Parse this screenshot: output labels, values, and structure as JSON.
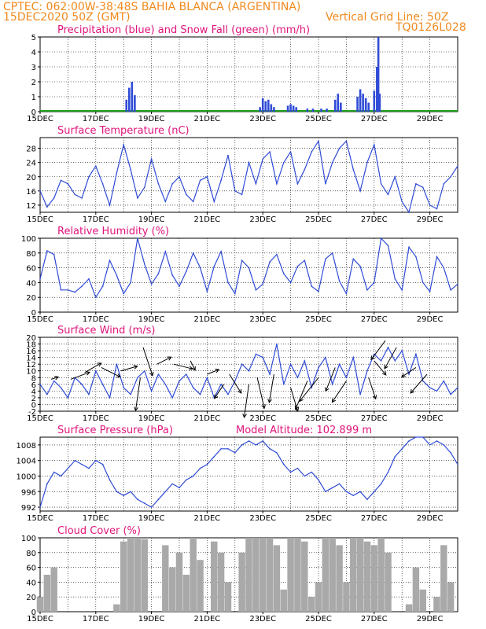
{
  "header": {
    "line1": "CPTEC:   062:00W-38:48S   BAHIA BLANCA (ARGENTINA)",
    "line2": "15DEC2020 50Z (GMT)",
    "grid_note": "Vertical Grid Line: 50Z",
    "code": "TQ0126L028"
  },
  "colors": {
    "line": "#2f4bd6",
    "bar": "#2f4bd6",
    "snow": "#21a321",
    "cloud": "#a9a9a9",
    "title": "#e0147c",
    "header": "#f08a1d"
  },
  "x_labels": [
    "15DEC",
    "17DEC",
    "19DEC",
    "21DEC",
    "23DEC",
    "25DEC",
    "27DEC",
    "29DEC"
  ],
  "chart_data": [
    {
      "type": "bar",
      "title": "Precipitation (blue) and Snow Fall (green) (mm/h)",
      "ylim": [
        0,
        5
      ],
      "yticks": [
        0,
        1,
        2,
        3,
        4,
        5
      ],
      "x_start_day": 15,
      "series": [
        {
          "name": "Precipitation",
          "points": [
            [
              18.1,
              0.8
            ],
            [
              18.2,
              1.6
            ],
            [
              18.3,
              2.0
            ],
            [
              18.4,
              1.1
            ],
            [
              22.9,
              0.3
            ],
            [
              23.0,
              0.9
            ],
            [
              23.1,
              0.7
            ],
            [
              23.2,
              0.8
            ],
            [
              23.3,
              0.5
            ],
            [
              23.4,
              0.3
            ],
            [
              23.9,
              0.4
            ],
            [
              24.0,
              0.5
            ],
            [
              24.1,
              0.4
            ],
            [
              24.2,
              0.3
            ],
            [
              24.6,
              0.2
            ],
            [
              24.8,
              0.2
            ],
            [
              25.1,
              0.2
            ],
            [
              25.3,
              0.2
            ],
            [
              25.6,
              0.8
            ],
            [
              25.7,
              1.2
            ],
            [
              25.8,
              0.6
            ],
            [
              26.4,
              1.0
            ],
            [
              26.5,
              1.5
            ],
            [
              26.6,
              1.2
            ],
            [
              26.7,
              0.9
            ],
            [
              26.8,
              0.6
            ],
            [
              27.0,
              1.4
            ],
            [
              27.1,
              3.0
            ],
            [
              27.15,
              5.0
            ],
            [
              27.2,
              1.2
            ]
          ]
        },
        {
          "name": "Snow Fall",
          "points": []
        }
      ]
    },
    {
      "type": "line",
      "title": "Surface Temperature (nC)",
      "ylim": [
        10,
        31
      ],
      "yticks": [
        12,
        16,
        20,
        24,
        28
      ],
      "x": [
        15.0,
        15.25,
        15.5,
        15.75,
        16.0,
        16.25,
        16.5,
        16.75,
        17.0,
        17.25,
        17.5,
        17.75,
        18.0,
        18.25,
        18.5,
        18.75,
        19.0,
        19.25,
        19.5,
        19.75,
        20.0,
        20.25,
        20.5,
        20.75,
        21.0,
        21.25,
        21.5,
        21.75,
        22.0,
        22.25,
        22.5,
        22.75,
        23.0,
        23.25,
        23.5,
        23.75,
        24.0,
        24.25,
        24.5,
        24.75,
        25.0,
        25.25,
        25.5,
        25.75,
        26.0,
        26.25,
        26.5,
        26.75,
        27.0,
        27.25,
        27.5,
        27.75,
        28.0,
        28.25,
        28.5,
        28.75,
        29.0,
        29.25,
        29.5,
        29.75,
        30.0
      ],
      "y": [
        16,
        11.5,
        14,
        19,
        18,
        15,
        14,
        20,
        23,
        18,
        12,
        21,
        29,
        22,
        14,
        17,
        25,
        18,
        13,
        18,
        20,
        15,
        13,
        19,
        20,
        13,
        19,
        26,
        16,
        15,
        24,
        18,
        25,
        27,
        18,
        24,
        27,
        18,
        22,
        27,
        30,
        18,
        24,
        28,
        30,
        22,
        16,
        24,
        29,
        18,
        15,
        20,
        13,
        10,
        18,
        17,
        12,
        11,
        18,
        20,
        23
      ]
    },
    {
      "type": "line",
      "title": "Relative Humidity (%)",
      "ylim": [
        0,
        100
      ],
      "yticks": [
        0,
        20,
        40,
        60,
        80,
        100
      ],
      "x": [
        15.0,
        15.25,
        15.5,
        15.75,
        16.0,
        16.25,
        16.5,
        16.75,
        17.0,
        17.25,
        17.5,
        17.75,
        18.0,
        18.25,
        18.5,
        18.75,
        19.0,
        19.25,
        19.5,
        19.75,
        20.0,
        20.25,
        20.5,
        20.75,
        21.0,
        21.25,
        21.5,
        21.75,
        22.0,
        22.25,
        22.5,
        22.75,
        23.0,
        23.25,
        23.5,
        23.75,
        24.0,
        24.25,
        24.5,
        24.75,
        25.0,
        25.25,
        25.5,
        25.75,
        26.0,
        26.25,
        26.5,
        26.75,
        27.0,
        27.25,
        27.5,
        27.75,
        28.0,
        28.25,
        28.5,
        28.75,
        29.0,
        29.25,
        29.5,
        29.75,
        30.0
      ],
      "y": [
        45,
        83,
        78,
        30,
        30,
        27,
        35,
        45,
        20,
        35,
        70,
        50,
        25,
        40,
        100,
        65,
        38,
        52,
        82,
        50,
        35,
        55,
        80,
        60,
        28,
        62,
        82,
        40,
        25,
        70,
        60,
        30,
        38,
        68,
        78,
        52,
        40,
        62,
        70,
        35,
        28,
        72,
        80,
        42,
        25,
        72,
        62,
        30,
        40,
        100,
        90,
        45,
        30,
        88,
        75,
        40,
        28,
        75,
        60,
        30,
        38
      ]
    },
    {
      "type": "line",
      "title": "Surface Wind (m/s)",
      "ylim": [
        -2,
        20
      ],
      "yticks": [
        -2,
        0,
        2,
        4,
        6,
        8,
        10,
        12,
        14,
        16,
        18,
        20
      ],
      "x": [
        15.0,
        15.25,
        15.5,
        15.75,
        16.0,
        16.25,
        16.5,
        16.75,
        17.0,
        17.25,
        17.5,
        17.75,
        18.0,
        18.25,
        18.5,
        18.75,
        19.0,
        19.25,
        19.5,
        19.75,
        20.0,
        20.25,
        20.5,
        20.75,
        21.0,
        21.25,
        21.5,
        21.75,
        22.0,
        22.25,
        22.5,
        22.75,
        23.0,
        23.25,
        23.5,
        23.75,
        24.0,
        24.25,
        24.5,
        24.75,
        25.0,
        25.25,
        25.5,
        25.75,
        26.0,
        26.25,
        26.5,
        26.75,
        27.0,
        27.25,
        27.5,
        27.75,
        28.0,
        28.25,
        28.5,
        28.75,
        29.0,
        29.25,
        29.5,
        29.75,
        30.0
      ],
      "y": [
        6,
        3,
        7,
        5,
        2,
        8,
        6,
        3,
        10,
        6,
        2,
        12,
        5,
        3,
        8,
        10,
        4,
        9,
        6,
        2,
        7,
        9,
        5,
        3,
        8,
        2,
        6,
        3,
        7,
        12,
        10,
        15,
        14,
        9,
        18,
        6,
        12,
        8,
        13,
        5,
        11,
        14,
        6,
        12,
        8,
        14,
        3,
        10,
        15,
        13,
        17,
        13,
        16,
        9,
        15,
        7,
        5,
        4,
        7,
        3,
        5
      ],
      "arrows": [
        [
          15.4,
          7.5,
          3,
          1
        ],
        [
          16.1,
          7.5,
          8,
          3
        ],
        [
          16.6,
          9.5,
          7,
          4
        ],
        [
          17.2,
          11,
          8,
          -4
        ],
        [
          17.9,
          10,
          7,
          2
        ],
        [
          18.6,
          8,
          -2,
          -14
        ],
        [
          18.7,
          17,
          4,
          -12
        ],
        [
          19.2,
          12,
          6,
          3
        ],
        [
          19.8,
          12,
          8,
          -2
        ],
        [
          20.4,
          13,
          2,
          -4
        ],
        [
          21.0,
          9,
          5,
          2
        ],
        [
          21.6,
          6,
          -4,
          -6
        ],
        [
          21.8,
          9,
          5,
          -8
        ],
        [
          22.5,
          6,
          -2,
          -14
        ],
        [
          22.8,
          8,
          3,
          -13
        ],
        [
          23.4,
          9,
          -2,
          -12
        ],
        [
          24.0,
          5,
          3,
          -10
        ],
        [
          24.6,
          7,
          -5,
          -12
        ],
        [
          25.0,
          8,
          -8,
          -10
        ],
        [
          25.6,
          11,
          -4,
          -10
        ],
        [
          26.0,
          7,
          -6,
          -9
        ],
        [
          26.8,
          8,
          3,
          -9
        ],
        [
          27.0,
          13,
          5,
          -6
        ],
        [
          27.4,
          19,
          -6,
          -8
        ],
        [
          27.8,
          17,
          -5,
          -9
        ],
        [
          28.5,
          11,
          -6,
          -4
        ],
        [
          28.9,
          9,
          -7,
          -8
        ]
      ]
    },
    {
      "type": "line",
      "title": "Surface Pressure (hPa)",
      "annotation": "Model Altitude: 102.899  m",
      "ylim": [
        991,
        1010
      ],
      "yticks": [
        992,
        996,
        1000,
        1004,
        1008
      ],
      "x": [
        15.0,
        15.25,
        15.5,
        15.75,
        16.0,
        16.25,
        16.5,
        16.75,
        17.0,
        17.25,
        17.5,
        17.75,
        18.0,
        18.25,
        18.5,
        18.75,
        19.0,
        19.25,
        19.5,
        19.75,
        20.0,
        20.25,
        20.5,
        20.75,
        21.0,
        21.25,
        21.5,
        21.75,
        22.0,
        22.25,
        22.5,
        22.75,
        23.0,
        23.25,
        23.5,
        23.75,
        24.0,
        24.25,
        24.5,
        24.75,
        25.0,
        25.25,
        25.5,
        25.75,
        26.0,
        26.25,
        26.5,
        26.75,
        27.0,
        27.25,
        27.5,
        27.75,
        28.0,
        28.25,
        28.5,
        28.75,
        29.0,
        29.25,
        29.5,
        29.75,
        30.0
      ],
      "y": [
        992,
        998,
        1001,
        1000,
        1002,
        1004,
        1003,
        1002,
        1004,
        1003,
        999,
        996,
        995,
        996,
        994,
        993,
        992,
        994,
        996,
        998,
        997,
        999,
        1000,
        1002,
        1003,
        1005,
        1007,
        1007,
        1006,
        1008,
        1009,
        1008,
        1009,
        1007,
        1006,
        1003,
        1001,
        1002,
        1000,
        1001,
        999,
        996,
        997,
        998,
        996,
        995,
        996,
        994,
        996,
        998,
        1001,
        1005,
        1007,
        1009,
        1011,
        1010,
        1008,
        1009,
        1008,
        1006,
        1003
      ]
    },
    {
      "type": "area",
      "title": "Cloud Cover (%)",
      "ylim": [
        0,
        100
      ],
      "yticks": [
        0,
        20,
        40,
        60,
        80,
        100
      ],
      "x": [
        15.0,
        15.25,
        15.5,
        15.75,
        16.0,
        16.25,
        16.5,
        16.75,
        17.0,
        17.25,
        17.5,
        17.75,
        18.0,
        18.25,
        18.5,
        18.75,
        19.0,
        19.25,
        19.5,
        19.75,
        20.0,
        20.25,
        20.5,
        20.75,
        21.0,
        21.25,
        21.5,
        21.75,
        22.0,
        22.25,
        22.5,
        22.75,
        23.0,
        23.25,
        23.5,
        23.75,
        24.0,
        24.25,
        24.5,
        24.75,
        25.0,
        25.25,
        25.5,
        25.75,
        26.0,
        26.25,
        26.5,
        26.75,
        27.0,
        27.25,
        27.5,
        27.75,
        28.0,
        28.25,
        28.5,
        28.75,
        29.0,
        29.25,
        29.5,
        29.75,
        30.0
      ],
      "y": [
        20,
        50,
        60,
        0,
        0,
        0,
        0,
        0,
        0,
        0,
        0,
        10,
        95,
        100,
        100,
        98,
        0,
        0,
        90,
        60,
        80,
        50,
        100,
        70,
        0,
        95,
        80,
        40,
        0,
        80,
        100,
        100,
        100,
        100,
        90,
        30,
        100,
        100,
        95,
        20,
        40,
        100,
        100,
        90,
        40,
        100,
        100,
        95,
        90,
        100,
        80,
        0,
        0,
        10,
        60,
        30,
        0,
        20,
        90,
        40,
        0
      ]
    }
  ]
}
